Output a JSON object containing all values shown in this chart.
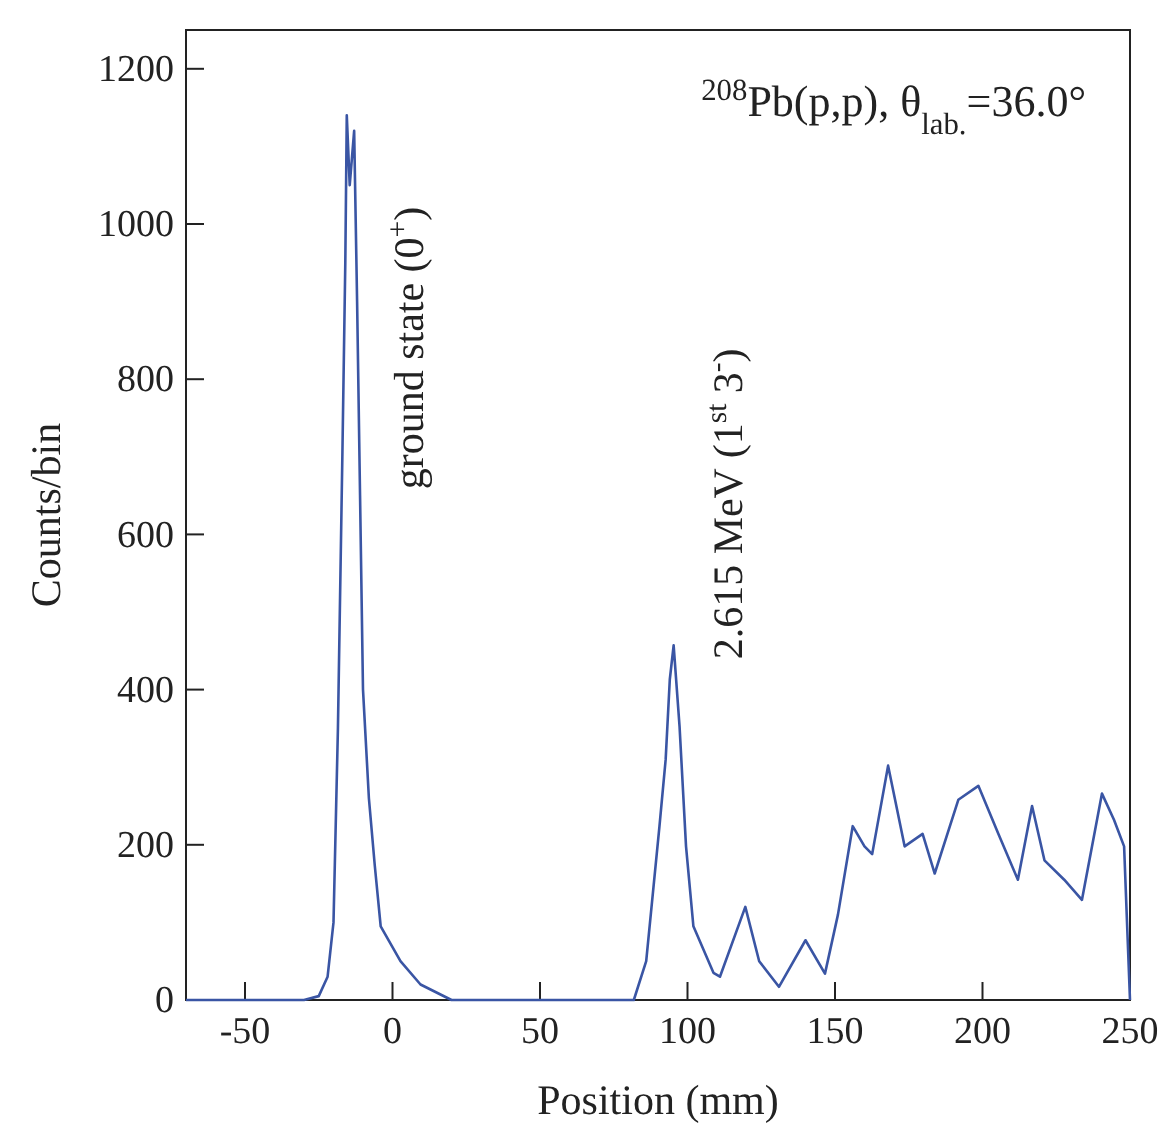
{
  "chart_data": {
    "type": "line",
    "title": "$^{208}$Pb(p,p), θ$_{lab.}$=36.0°",
    "xlabel": "Position (mm)",
    "ylabel": "Counts/bin",
    "xlim": [
      -70,
      250
    ],
    "ylim": [
      0,
      1250
    ],
    "xticks": [
      -50,
      0,
      50,
      100,
      150,
      200,
      250
    ],
    "yticks": [
      0,
      200,
      400,
      600,
      800,
      1000,
      1200
    ],
    "series": [
      {
        "color": "#3a55a4",
        "x": [
          -70,
          -30,
          -25,
          -22,
          -20,
          -18.5,
          -17,
          -16,
          -15.5,
          -14.5,
          -13,
          -12,
          -11,
          -10,
          -8,
          -6,
          -4,
          2.7,
          9.5,
          20,
          60,
          81.8,
          86,
          90.5,
          92.6,
          94,
          95.3,
          97.3,
          99.5,
          102,
          108.8,
          111,
          119.6,
          124.3,
          131,
          140,
          146.6,
          151,
          156,
          160,
          162.6,
          168,
          173.6,
          179.7,
          183.8,
          191.8,
          198.6,
          205.4,
          212,
          216.8,
          221,
          227.7,
          233.7,
          240.5,
          244.6,
          248,
          250
        ],
        "values": [
          0,
          0,
          5,
          30,
          100,
          350,
          700,
          950,
          1140,
          1050,
          1120,
          900,
          650,
          400,
          260,
          173,
          95,
          50,
          20,
          0,
          0,
          0,
          50,
          224,
          310,
          413,
          457,
          353,
          198,
          95,
          35,
          30,
          120,
          50,
          17,
          77,
          34,
          110,
          224,
          198,
          188,
          302,
          198,
          214,
          163,
          258,
          276,
          214,
          155,
          250,
          180,
          155,
          129,
          266,
          232,
          198,
          0
        ]
      }
    ],
    "annotations": [
      {
        "text": "ground state (0$^{+}$)",
        "x": -15.5,
        "y": 1140
      },
      {
        "text": "2.615 MeV (1$^{st}$ 3$^{-}$)",
        "x": 95.3,
        "y": 457
      }
    ],
    "grid": false,
    "line_style": "solid",
    "marker": "none"
  }
}
